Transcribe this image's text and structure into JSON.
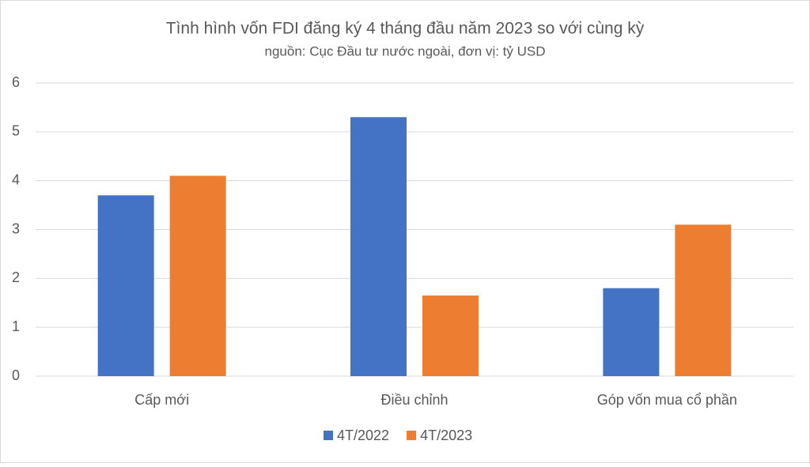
{
  "chart_data": {
    "type": "bar",
    "title": "Tình hình vốn FDI đăng ký 4 tháng đầu năm 2023 so với cùng kỳ",
    "subtitle": "nguồn: Cục Đầu tư nước ngoài, đơn vị: tỷ USD",
    "categories": [
      "Cấp mới",
      "Điều chỉnh",
      "Góp vốn mua cổ phần"
    ],
    "series": [
      {
        "name": "4T/2022",
        "color": "#4472c4",
        "values": [
          3.7,
          5.3,
          1.8
        ]
      },
      {
        "name": "4T/2023",
        "color": "#ed7d31",
        "values": [
          4.1,
          1.65,
          3.1
        ]
      }
    ],
    "ylim": [
      0,
      6
    ],
    "yticks": [
      0,
      1,
      2,
      3,
      4,
      5,
      6
    ],
    "grid": true,
    "legend": "bottom"
  }
}
